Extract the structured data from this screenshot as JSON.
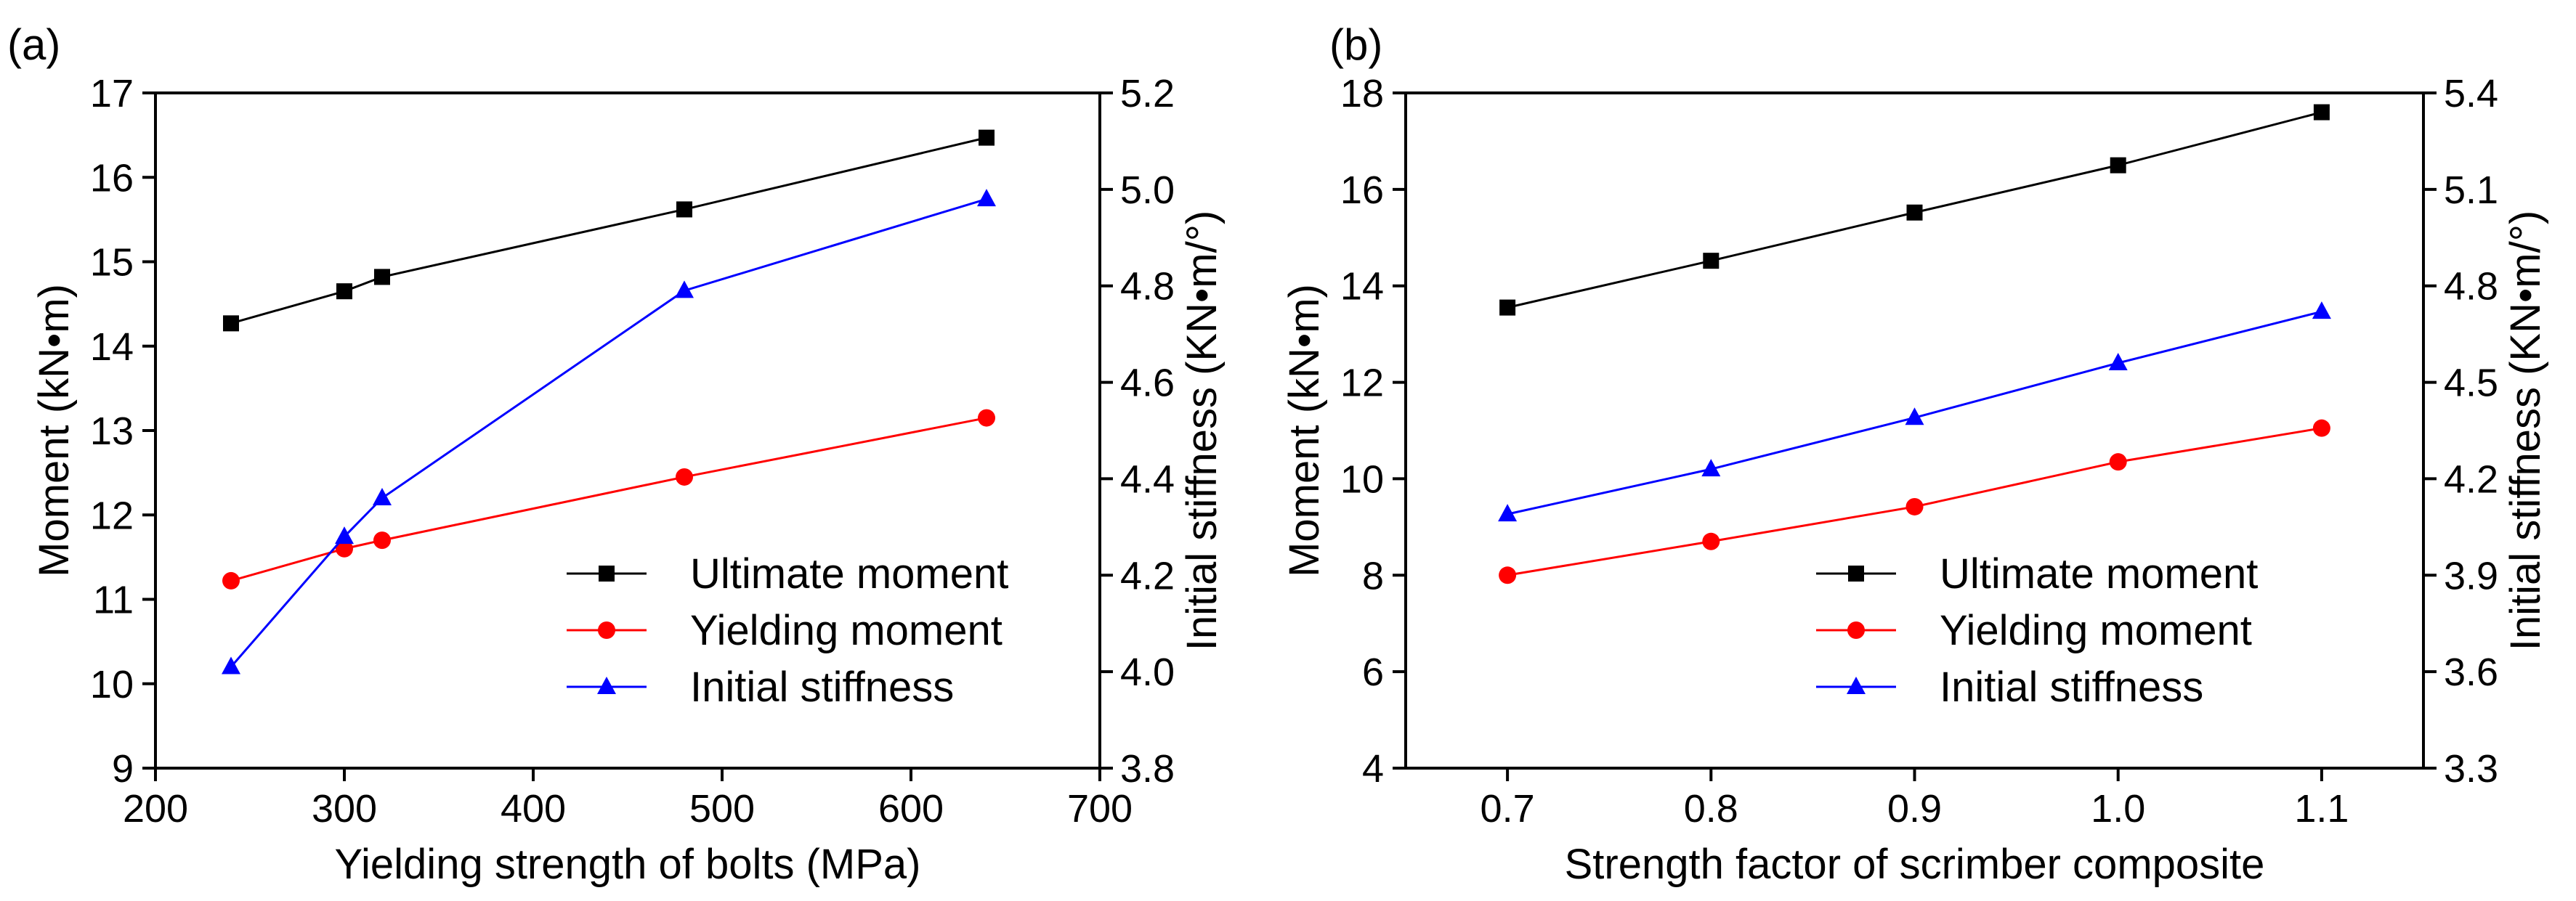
{
  "chart_data": [
    {
      "type": "line",
      "panel_label": "(a)",
      "xlabel": "Yielding strength of bolts (MPa)",
      "ylabel_left": "Moment (kN•m)",
      "ylabel_right": "Initial stiffness (KN•m/°)",
      "xlim": [
        200,
        700
      ],
      "xticks": [
        200,
        300,
        400,
        500,
        600,
        700
      ],
      "ylim_left": [
        9,
        17
      ],
      "yticks_left": [
        9,
        10,
        11,
        12,
        13,
        14,
        15,
        16,
        17
      ],
      "ylim_right": [
        3.8,
        5.2
      ],
      "yticks_right": [
        "3.8",
        "4.0",
        "4.2",
        "4.4",
        "4.6",
        "4.8",
        "5.0",
        "5.2"
      ],
      "x": [
        240,
        300,
        320,
        480,
        640
      ],
      "series": [
        {
          "name": "Ultimate moment",
          "axis": "left",
          "color": "#000000",
          "marker": "square",
          "values": [
            14.27,
            14.65,
            14.82,
            15.62,
            16.47
          ]
        },
        {
          "name": "Yielding moment",
          "axis": "left",
          "color": "#ff0000",
          "marker": "circle",
          "values": [
            11.22,
            11.6,
            11.7,
            12.45,
            13.15
          ]
        },
        {
          "name": "Initial stiffness",
          "axis": "right",
          "color": "#0000ff",
          "marker": "triangle",
          "values": [
            4.01,
            4.28,
            4.36,
            4.79,
            4.98
          ]
        }
      ],
      "legend_position": "bottom-right"
    },
    {
      "type": "line",
      "panel_label": "(b)",
      "xlabel": "Strength factor of scrimber composite",
      "ylabel_left": "Moment (kN•m)",
      "ylabel_right": "Initial stiffness (KN•m/°)",
      "xlim": [
        0.65,
        1.15
      ],
      "xticks": [
        "0.7",
        "0.8",
        "0.9",
        "1.0",
        "1.1"
      ],
      "xtick_values": [
        0.7,
        0.8,
        0.9,
        1.0,
        1.1
      ],
      "ylim_left": [
        4,
        18
      ],
      "yticks_left": [
        4,
        6,
        8,
        10,
        12,
        14,
        16,
        18
      ],
      "ylim_right": [
        3.3,
        5.4
      ],
      "yticks_right": [
        "3.3",
        "3.6",
        "3.9",
        "4.2",
        "4.5",
        "4.8",
        "5.1",
        "5.4"
      ],
      "x": [
        0.7,
        0.8,
        0.9,
        1.0,
        1.1
      ],
      "series": [
        {
          "name": "Ultimate moment",
          "axis": "left",
          "color": "#000000",
          "marker": "square",
          "values": [
            13.55,
            14.52,
            15.52,
            16.5,
            17.6
          ]
        },
        {
          "name": "Yielding moment",
          "axis": "left",
          "color": "#ff0000",
          "marker": "circle",
          "values": [
            8.0,
            8.7,
            9.42,
            10.35,
            11.05
          ]
        },
        {
          "name": "Initial stiffness",
          "axis": "right",
          "color": "#0000ff",
          "marker": "triangle",
          "values": [
            4.09,
            4.23,
            4.39,
            4.56,
            4.72
          ]
        }
      ],
      "legend_position": "bottom-right"
    }
  ]
}
